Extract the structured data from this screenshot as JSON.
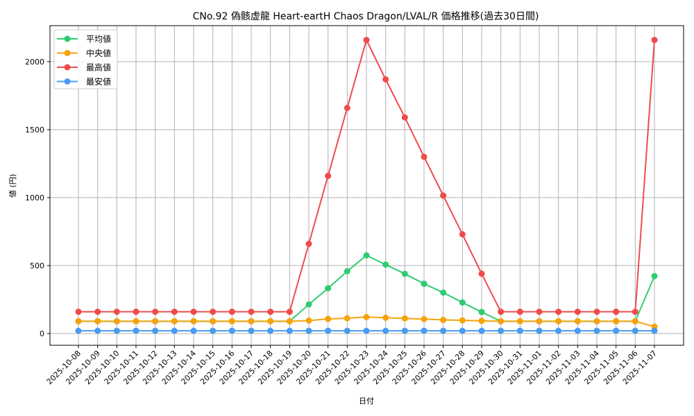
{
  "chart_data": {
    "type": "line",
    "title": "CNo.92 偽骸虚龍 Heart-eartH Chaos Dragon/LVAL/R 価格推移(過去30日間)",
    "xlabel": "日付",
    "ylabel": "値 (円)",
    "ylim": [
      -90,
      2270
    ],
    "yticks": [
      0,
      500,
      1000,
      1500,
      2000
    ],
    "grid": true,
    "legend_position": "upper left",
    "categories": [
      "2025-10-08",
      "2025-10-09",
      "2025-10-10",
      "2025-10-11",
      "2025-10-12",
      "2025-10-13",
      "2025-10-14",
      "2025-10-15",
      "2025-10-16",
      "2025-10-17",
      "2025-10-18",
      "2025-10-19",
      "2025-10-20",
      "2025-10-21",
      "2025-10-22",
      "2025-10-23",
      "2025-10-24",
      "2025-10-25",
      "2025-10-26",
      "2025-10-27",
      "2025-10-28",
      "2025-10-29",
      "2025-10-30",
      "2025-10-31",
      "2025-11-01",
      "2025-11-02",
      "2025-11-03",
      "2025-11-04",
      "2025-11-05",
      "2025-11-06",
      "2025-11-07"
    ],
    "series": [
      {
        "name": "平均値",
        "color": "#2ecc71",
        "values": [
          90,
          90,
          90,
          90,
          90,
          90,
          90,
          90,
          90,
          90,
          90,
          90,
          214,
          333,
          458,
          575,
          507,
          439,
          366,
          301,
          228,
          158,
          90,
          90,
          90,
          90,
          90,
          90,
          90,
          90,
          422
        ]
      },
      {
        "name": "中央値",
        "color": "#f5a30a",
        "values": [
          90,
          90,
          90,
          90,
          90,
          90,
          90,
          90,
          90,
          90,
          90,
          90,
          95,
          107,
          112,
          121,
          116,
          111,
          106,
          100,
          97,
          93,
          90,
          90,
          90,
          90,
          90,
          90,
          90,
          90,
          50
        ]
      },
      {
        "name": "最高値",
        "color": "#f04a4a",
        "values": [
          160,
          160,
          160,
          160,
          160,
          160,
          160,
          160,
          160,
          160,
          160,
          160,
          660,
          1160,
          1660,
          2160,
          1870,
          1590,
          1300,
          1015,
          730,
          440,
          160,
          160,
          160,
          160,
          160,
          160,
          160,
          160,
          2160
        ]
      },
      {
        "name": "最安値",
        "color": "#4a9af5",
        "values": [
          20,
          20,
          20,
          20,
          20,
          20,
          20,
          20,
          20,
          20,
          20,
          20,
          20,
          20,
          20,
          20,
          20,
          20,
          20,
          20,
          20,
          20,
          20,
          20,
          20,
          20,
          20,
          20,
          20,
          20,
          20
        ]
      }
    ]
  }
}
